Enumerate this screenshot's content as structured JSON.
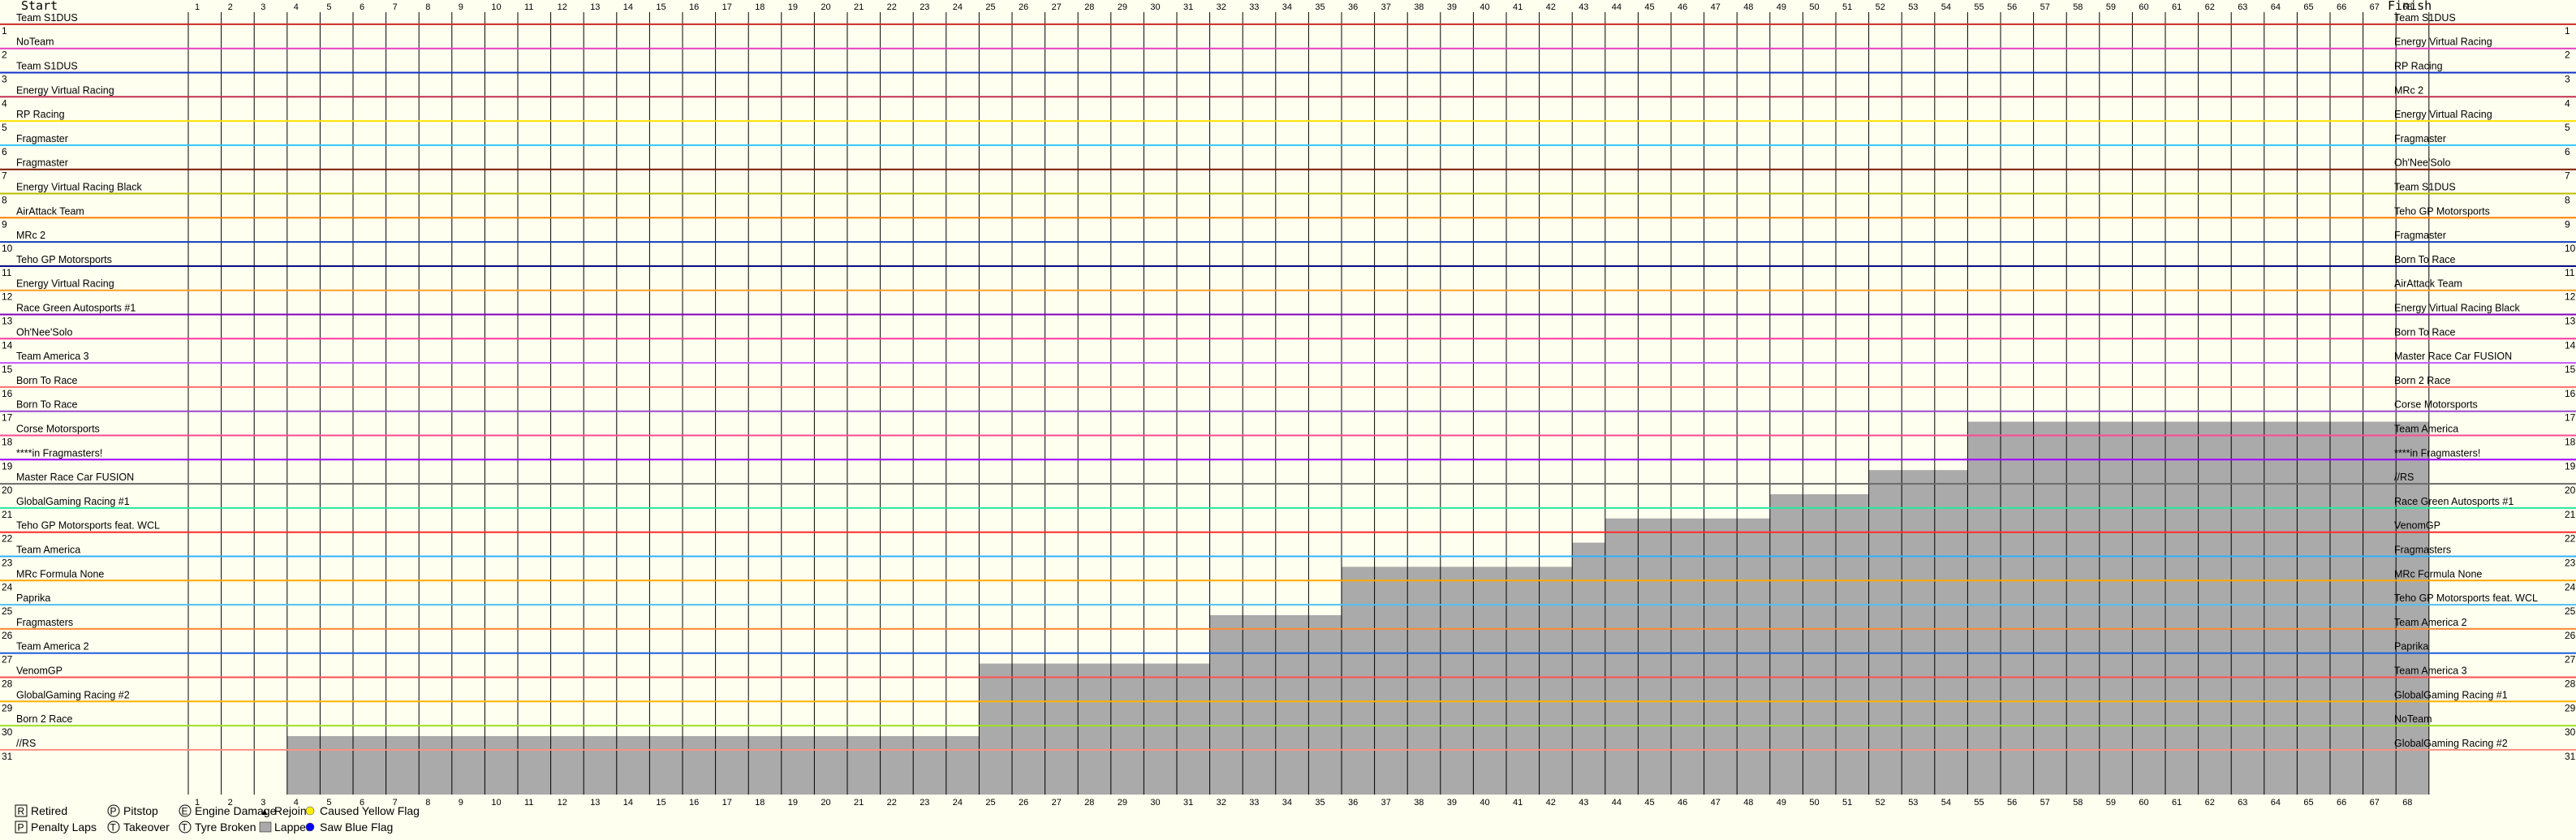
{
  "chart_data": {
    "type": "line",
    "subtype": "lap-chart",
    "header_left": "Start",
    "header_right": "Finish",
    "laps": 68,
    "positions": 31,
    "start_order": [
      "Team S1DUS",
      "NoTeam",
      "Team S1DUS",
      "Energy Virtual Racing",
      "RP Racing",
      "Fragmaster",
      "Fragmaster",
      "Energy Virtual Racing Black",
      "AirAttack Team",
      "MRc 2",
      "Teho GP Motorsports",
      "Energy Virtual Racing",
      "Race Green Autosports #1",
      "Oh'Nee'Solo",
      "Team America 3",
      "Born To Race",
      "Born To Race",
      "Corse Motorsports",
      "****in Fragmasters!",
      "Master Race Car FUSION",
      "GlobalGaming Racing #1",
      "Teho GP Motorsports feat. WCL",
      "Team America",
      "MRc Formula None",
      "Paprika",
      "Fragmasters",
      "Team America 2",
      "VenomGP",
      "GlobalGaming Racing #2",
      "Born 2 Race",
      "//RS"
    ],
    "finish_order": [
      "Team S1DUS",
      "Energy Virtual Racing",
      "RP Racing",
      "MRc 2",
      "Energy Virtual Racing",
      "Fragmaster",
      "Oh'Nee'Solo",
      "Team S1DUS",
      "Teho GP Motorsports",
      "Fragmaster",
      "Born To Race",
      "AirAttack Team",
      "Energy Virtual Racing Black",
      "Born To Race",
      "Master Race Car FUSION",
      "Born 2 Race",
      "Corse Motorsports",
      "Team America",
      "****in Fragmasters!",
      "//RS",
      "Race Green Autosports #1",
      "VenomGP",
      "Fragmasters",
      "MRc Formula None",
      "Teho GP Motorsports feat. WCL",
      "Team America 2",
      "Paprika",
      "Team America 3",
      "GlobalGaming Racing #1",
      "NoTeam",
      "GlobalGaming Racing #2"
    ],
    "series_colors": [
      "#cc2a2a",
      "#e040c0",
      "#1030c8",
      "#c03050",
      "#ffe000",
      "#30c8ff",
      "#7a1800",
      "#bbbb00",
      "#ff8000",
      "#1040c0",
      "#000080",
      "#ff9d2a",
      "#8000c0",
      "#ff3aa0",
      "#c058ff",
      "#ff7070",
      "#9a4ad0",
      "#ff4a90",
      "#a000ff",
      "#6a6a6a",
      "#2ae7a0",
      "#ff2a2a",
      "#30b0ff",
      "#ffa800",
      "#50c0f0",
      "#ff8a30",
      "#1a60e0",
      "#ff5050",
      "#ffb000",
      "#a0e020",
      "#ff9080"
    ],
    "lapped_from_lap": [
      null,
      null,
      null,
      null,
      null,
      null,
      null,
      null,
      null,
      null,
      null,
      null,
      null,
      null,
      null,
      null,
      null,
      55,
      null,
      52,
      49,
      44,
      43,
      36,
      37,
      32,
      32,
      25,
      null,
      null,
      4
    ],
    "legend": [
      {
        "symbol": "R",
        "label": "Retired"
      },
      {
        "symbol": "P",
        "label": "Penalty Laps"
      },
      {
        "symbol": "P",
        "label": "Pitstop"
      },
      {
        "symbol": "T",
        "label": "Takeover"
      },
      {
        "symbol": "E",
        "label": "Engine Damage"
      },
      {
        "symbol": "T",
        "label": "Tyre Broken"
      },
      {
        "symbol": "▲",
        "label": "Rejoin"
      },
      {
        "symbol": "■",
        "label": "Lapped"
      },
      {
        "symbol": "●",
        "label": "Caused Yellow Flag"
      },
      {
        "symbol": "●",
        "label": "Saw Blue Flag"
      }
    ],
    "colors": {
      "background": "#fffff0",
      "grid": "#000000",
      "lapped": "#aaaaaa",
      "yellow_flag": "#ffee00",
      "blue_flag": "#0000ff"
    }
  }
}
